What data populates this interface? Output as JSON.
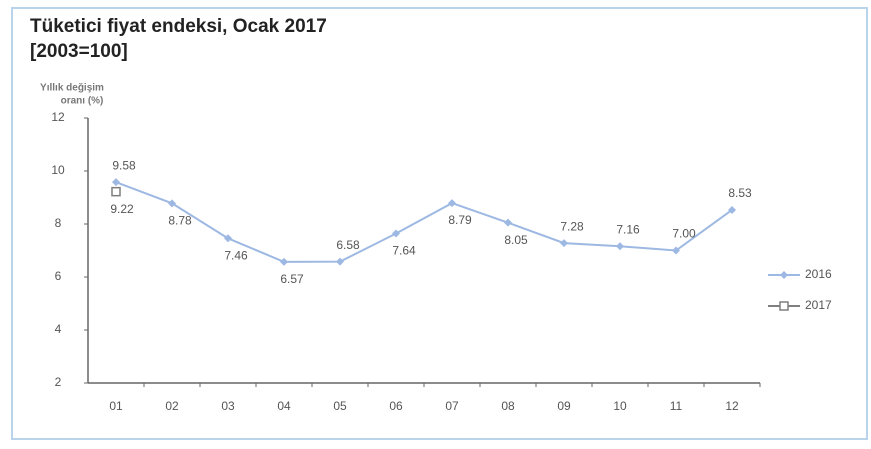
{
  "chart_data": {
    "type": "line",
    "title": "Tüketici fiyat endeksi, Ocak 2017",
    "subtitle": "[2003=100]",
    "y_label": [
      "Yıllık değişim",
      "oranı (%)"
    ],
    "categories": [
      "01",
      "02",
      "03",
      "04",
      "05",
      "06",
      "07",
      "08",
      "09",
      "10",
      "11",
      "12"
    ],
    "series": [
      {
        "name": "2016",
        "color": "#9db8e2",
        "marker": "diamond",
        "values": [
          9.58,
          8.78,
          7.46,
          6.57,
          6.58,
          7.64,
          8.79,
          8.05,
          7.28,
          7.16,
          7.0,
          8.53
        ],
        "value_labels": [
          "9.58",
          "8.78",
          "7.46",
          "6.57",
          "6.58",
          "7.64",
          "8.79",
          "8.05",
          "7.28",
          "7.16",
          "7.00",
          "8.53"
        ]
      },
      {
        "name": "2017",
        "color": "#7f7f7f",
        "marker": "square",
        "values": [
          9.22,
          null,
          null,
          null,
          null,
          null,
          null,
          null,
          null,
          null,
          null,
          null
        ],
        "value_labels": [
          "9.22",
          null,
          null,
          null,
          null,
          null,
          null,
          null,
          null,
          null,
          null,
          null
        ]
      }
    ],
    "ylim": [
      2,
      12
    ],
    "yticks": [
      2,
      4,
      6,
      8,
      10,
      12
    ],
    "grid": false,
    "legend": "right"
  }
}
